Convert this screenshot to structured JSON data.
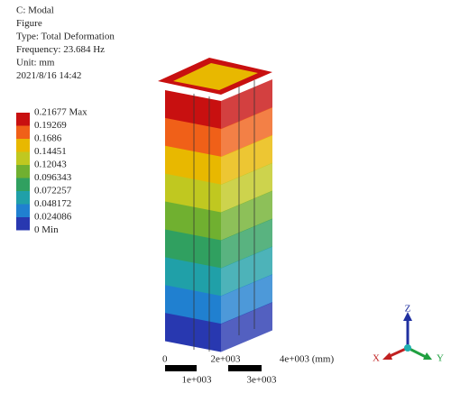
{
  "header": {
    "lines": [
      "C: Modal",
      "Figure",
      "Type: Total Deformation",
      "Frequency: 23.684 Hz",
      "Unit: mm",
      "2021/8/16 14:42"
    ]
  },
  "legend": {
    "labels": [
      "0.21677 Max",
      "0.19269",
      "0.1686",
      "0.14451",
      "0.12043",
      "0.096343",
      "0.072257",
      "0.048172",
      "0.024086",
      "0 Min"
    ],
    "colors": [
      "#c81010",
      "#f06018",
      "#e8b800",
      "#c0c820",
      "#70b030",
      "#30a060",
      "#20a0a8",
      "#2080d0",
      "#2838b0"
    ]
  },
  "scale_bar": {
    "top_labels": [
      "0",
      "2e+003",
      "4e+003 (mm)"
    ],
    "bottom_labels": [
      "1e+003",
      "3e+003"
    ]
  },
  "triad": {
    "labels": [
      "Z",
      "X",
      "Y"
    ]
  }
}
